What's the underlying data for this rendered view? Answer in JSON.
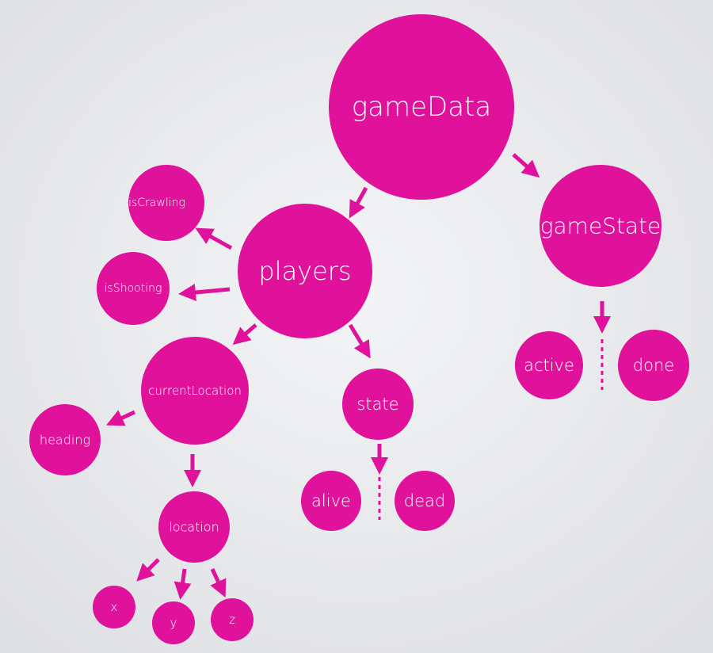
{
  "nodes": [
    {
      "label": "gameData"
    },
    {
      "label": "gameState"
    },
    {
      "label": "players"
    },
    {
      "label": "isCrawling"
    },
    {
      "label": "isShooting"
    },
    {
      "label": "currentLocation"
    },
    {
      "label": "state"
    },
    {
      "label": "heading"
    },
    {
      "label": "location"
    },
    {
      "label": "alive"
    },
    {
      "label": "dead"
    },
    {
      "label": "active"
    },
    {
      "label": "done"
    },
    {
      "label": "x"
    },
    {
      "label": "y"
    },
    {
      "label": "z"
    }
  ]
}
